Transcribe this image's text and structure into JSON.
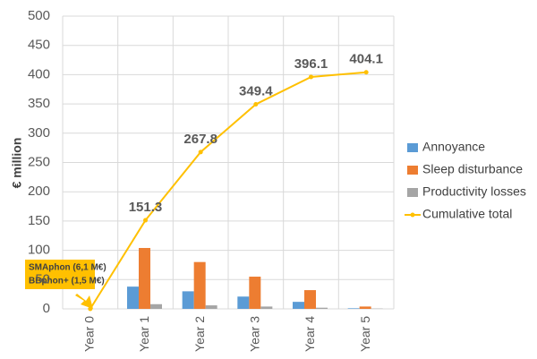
{
  "chart_data": {
    "type": "bar_line",
    "y_label": "€ million",
    "categories": [
      "Year 0",
      "Year 1",
      "Year 2",
      "Year 3",
      "Year 4",
      "Year 5"
    ],
    "series": [
      {
        "name": "Annoyance",
        "type": "bar",
        "color": "#5b9bd5",
        "values": [
          0,
          38,
          30,
          21,
          12,
          1
        ]
      },
      {
        "name": "Sleep disturbance",
        "type": "bar",
        "color": "#ed7d31",
        "values": [
          0,
          104,
          80,
          55,
          32,
          4
        ]
      },
      {
        "name": "Productivity losses",
        "type": "bar",
        "color": "#a5a5a5",
        "values": [
          0,
          8,
          6,
          4,
          2,
          0.5
        ]
      },
      {
        "name": "Cumulative total",
        "type": "line",
        "color": "#ffc000",
        "values": [
          0,
          151.3,
          267.8,
          349.4,
          396.1,
          404.1
        ],
        "value_labels": [
          null,
          "151.3",
          "267.8",
          "349.4",
          "396.1",
          "404.1"
        ]
      }
    ],
    "annotations": [
      "SMAphon (6,1 M€)",
      "BBphon+ (1,5 M€)"
    ],
    "ylim": [
      0,
      500
    ],
    "yticks": [
      0,
      50,
      100,
      150,
      200,
      250,
      300,
      350,
      400,
      450,
      500
    ],
    "grid": true,
    "legend": "right"
  }
}
